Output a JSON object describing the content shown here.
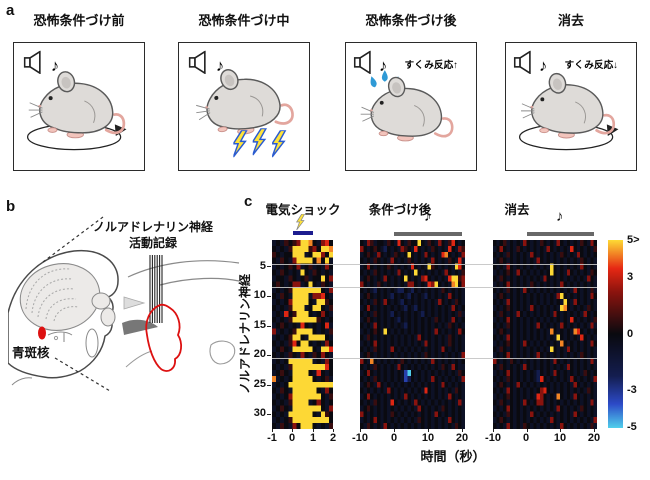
{
  "panel_a": {
    "label": "a",
    "note_symbol": "♪",
    "boxes": [
      {
        "title": "恐怖条件づけ前",
        "note": "♪",
        "annotation": "",
        "features": [
          "speaker",
          "movement-circle"
        ]
      },
      {
        "title": "恐怖条件づけ中",
        "note": "♪",
        "annotation": "",
        "features": [
          "speaker",
          "shock-bolts"
        ]
      },
      {
        "title": "恐怖条件づけ後",
        "note": "♪",
        "annotation": "すくみ反応↑",
        "features": [
          "speaker",
          "sweat-drops"
        ]
      },
      {
        "title": "消去",
        "note": "♪",
        "annotation": "すくみ反応↓",
        "features": [
          "speaker",
          "movement-circle"
        ]
      }
    ]
  },
  "panel_b": {
    "label": "b",
    "recording_label_line1": "ノルアドレナリン神経",
    "recording_label_line2": "活動記録",
    "lc_label": "青斑核",
    "lc_color": "#dd1111"
  },
  "panel_c": {
    "label": "c",
    "titles": [
      "電気ショック",
      "条件づけ後",
      "消去"
    ],
    "note_symbol": "♪",
    "xlabel": "時間（秒）",
    "ylabel": "ノルアドレナリン神経",
    "y_ticks": [
      5,
      10,
      15,
      20,
      25,
      30
    ],
    "colorbar": {
      "labels": [
        "5>",
        "3",
        "0",
        "-3",
        "-5"
      ],
      "max": 5,
      "min": -5
    }
  },
  "chart_data": [
    {
      "type": "heatmap",
      "title": "電気ショック",
      "xlabel": "時間（秒）",
      "ylabel": "ノルアドレナリン神経",
      "x_range": [
        -1,
        2
      ],
      "x_ticks": [
        -1,
        0,
        1,
        2
      ],
      "x_tick_labels": [
        "-1",
        "0",
        "1",
        "2"
      ],
      "stimulus": {
        "kind": "electric-shock",
        "from_s": 0,
        "to_s": 1,
        "color": "#1c1c8f",
        "icon": "lightning-icon"
      },
      "rows": 32,
      "cols": 15,
      "value_scale": "z-score",
      "value_min": -5,
      "value_max": 5,
      "row_separators_after_row": [
        4,
        8,
        20
      ],
      "value_key": {
        ".": 0,
        ",": -0.8,
        "-": 0.8,
        "r": 2.2,
        "R": 3.4,
        "o": 4.3,
        "Y": 5,
        "b": -2.2,
        "B": -3.4,
        "C": -5
      },
      "cells": [
        ",.,-.-rYYo.,rR.",
        ".,.,-YYYY-r.YYo",
        "-.,..YYY,.YYr.Y",
        ".,-.,rYYYY.o.Y,",
        ",.,.-.r,.-,.,r.",
        ".,-.,.,Y.,-.,.,",
        ",..,-.,.-,..Y.r",
        ".-.,.rr,.Y.,-.,",
        ",.,.-YYYYYYY.,r",
        ".,-.,YYYY,rrR.,",
        ",.,.rYYYY.,YY-.",
        ".,.,-YYY,.YY.,-",
        ",.,R.-YYY.,.r.,",
        ".,.,-YYYYYY-.,.",
        ",.-.,.,R.,.,.R,",
        "r,.,.-YYYY.,.,-",
        ",.,.-YY.,YYYY.,",
        ".,.,-R.YY.,.,r.",
        ",.-.,YYYYY.,YYR",
        ".,.,-.,r.,-.r.,",
        ",.,.YYYYYY,.,r.",
        ".,.,-YYYYYYYYR.",
        ",.-.,YYYY.,R.,.",
        "o,.,.YYYYY.,.-,",
        ",.,.YYYYYYYYYYY",
        ".,-.,YYYYYY.,r.",
        ",.,.rYYYYYYY.,-",
        ".,.,-YYYY,.r.,.",
        ",.-.,YYYYYYY.,r",
        ".,.,YYYYYY.,Y-.",
        ",.,.-YYYYYYYYY.",
        ".,-.,r.YYY.,.,-"
      ]
    },
    {
      "type": "heatmap",
      "title": "条件づけ後",
      "xlabel": "時間（秒）",
      "ylabel": "ノルアドレナリン神経",
      "x_range": [
        -10,
        21
      ],
      "x_ticks": [
        -10,
        0,
        10,
        20
      ],
      "x_tick_labels": [
        "-10",
        "0",
        "10",
        "20"
      ],
      "stimulus": {
        "kind": "tone",
        "from_s": 0,
        "to_s": 20,
        "color": "#686868",
        "icon": "music-note-icon"
      },
      "rows": 32,
      "cols": 31,
      "value_scale": "z-score",
      "value_min": -5,
      "value_max": 5,
      "row_separators_after_row": [
        4,
        8,
        20
      ],
      "value_key": {
        ".": 0,
        ",": -0.8,
        "-": 0.8,
        "r": 2.2,
        "R": 3.4,
        "o": 4.3,
        "Y": 5,
        "b": -2.2,
        "B": -3.4,
        "C": -5
      },
      "cells": [
        ".,r-,..,-.,R.,-..Y.,-.,r.,-R.,.",
        "r.,.-.,b.,.,r-.,R.,.,-.,.,R.,r-",
        ",.-.,r.,.,-.,.Y.,.,r.,.,Ro.,.,r",
        ".,.,-.,.,r.,.,-.,.,.,r.,.,-.,R,",
        ",.r.,.,.-.,.,.,R.,.,Y-.,.,.,YR.",
        ".,.,-.,.,.,r.,.,Y.,.,.,.,r.,.,-",
        ",.-.,.,r.,.,.Y.,.,rR.,.,.,RYY-r",
        "r.,.,-.,.,.,.,rr.,.,RrY.,.,oY.r",
        ".,.,b.,.,.,bb.,b.,.,.,.,-.,.,.,",
        ",.-.,.,.,b.,.,b.,.,b.,.,.,r.,.,",
        ".,.,-.,r.,.,b.,.,.,.,.,r.,.,-.,",
        ",.r.,.,.,.,.,b.,b.,.,.,.,.,r.,.",
        ".,.,-.,.,b.,.,.,.,b.,.,.,.,.,-,",
        ",.-.,.,.,.,b.,.,.,.,.,-.,.,r.,.",
        ".,.,r.,.,.,.,b.,.,.,.,.,.,-.,.,",
        ",.,.-.,Y.,.,.,.,.,.,.,r.,.,.,r.",
        ".,-.,.,.,.,.,.,.,r.,.,.,.,-.,.,",
        ",.,.r.,.,.,.,.,.,.,r.,.,.,-.,.,",
        ".,.,-.,.,r.,.,.,.,.,.,.,r.,.,.,",
        ",.-.,.,.,.,.,.,.,.,-.,.,.,.,.,r",
        "r.,o.,.,.,.,-.,.,.,.,r.,.,.,.,.",
        ".,.,-.,.,.,r.,.,.,.,.,.,-.,r.,,",
        ",.r.,.,.,.,.,BC.,.,.,.,.,.,.,-.",
        ".,.,-.,.,.,.,Bb.,.,.,r.,.,.,.,r",
        ",.-.,r.,.,.,.,.,.,.,.,.,r.,.,.,",
        ".,.,.,.,r.,.,.,.,.,R.,.,.,.,-.,",
        ",.r.,.,.,.,.,r.,.,.,.,.,.,r.,.,",
        ".,.,-.,.,R.,.,.,r.,.,.,.,.,.,r,",
        ",.-.,.,.,.,.,.,.,r.,.,.,-.,.,.,",
        "r.,.,.,.,-.,.,.,.,.,.,r.,.,.,.,",
        ",.,.r.,.,.,.,.,.,-.,.,.,.,r.,.,",
        ".,-.,.,r.,.,.,.,.,.,.,.,.,.,-.,"
      ]
    },
    {
      "type": "heatmap",
      "title": "消去",
      "xlabel": "時間（秒）",
      "ylabel": "ノルアドレナリン神経",
      "x_range": [
        -10,
        21
      ],
      "x_ticks": [
        -10,
        0,
        10,
        20
      ],
      "x_tick_labels": [
        "-10",
        "0",
        "10",
        "20"
      ],
      "stimulus": {
        "kind": "tone",
        "from_s": 0,
        "to_s": 20,
        "color": "#686868",
        "icon": "music-note-icon"
      },
      "rows": 32,
      "cols": 31,
      "value_scale": "z-score",
      "value_min": -5,
      "value_max": 5,
      "row_separators_after_row": [
        4,
        8,
        20
      ],
      "value_key": {
        ".": 0,
        ",": -0.8,
        "-": 0.8,
        "r": 2.2,
        "R": 3.4,
        "o": 4.3,
        "Y": 5,
        "b": -2.2,
        "B": -3.4,
        "C": -5
      },
      "cells": [
        ".,.-,.,.,r.,.,-.,.,r.,.,.,-.,r.",
        ",.r.,.,-.,.,.,.,r.,.,.,R.,.,.,-",
        ".,.,-.,.,.,r.,.,.,.,-.,.,r.,.,.",
        ",.-.,.,.,.,.,r.,.,.,.,.,.,-.,.,",
        ".,.,r.,.,.,.,.,.,Y.,.,.,.,r.,.,",
        ",.,.-.,r.,.,.,.,.Y.,.,r.,.,.,-.",
        ".,-.,.,.,.,.,.,r.,.,.,.,.,.,r.,",
        ",.,.r.,.,.,-.,.,.,.,r.,.,.,.,.,",
        ".,.,-.,.,r.,.,.,.,.,.,.,r.,.,-,",
        ",.-.,.,.,.,.,.,.,.,rY.,.,.,.,r.",
        ".,.,r.,.,.,.,.,.,.,.,Y.,r.,.,.,",
        ",.,.-.,.,.,r.,.,.,.,Yo.,.,.,-.,",
        ".,-.,.,r.,.,.,.,.,r.,.,.,.,r.,.",
        ",.,.r.,.,.,.,.,.,.,.,.,R.,.,.,-",
        ".,.,-.,.,.,.,r.,.,.,r.,.,.,.,r,",
        ",.-.,.,.,.,.,.,.,o.,.,.,oR.,.,.",
        ".,.,r.,.,.,.,.,.,.,Y.,.,.,R.,.,",
        ",.,.-.,.,r.,.,.,.,.,o.,.,.,.,r.",
        ".,-.,.,.,.,.,.,.,Y.,.,r.,.,.,.,",
        ",.,.r.,.,.,.,r.,.,.,.,.,.,-.,.,",
        "r.,.,-.,.,.,.,.,.,r.,.,.,.,.,r,",
        ".,-.,.,.,r.,.,.,.,.,.,r.,.,.,.,",
        ",.,.r.,.,.,.,b.,.,r.,.,.,.,-.,.",
        ".,.,-.,.,.,.,bR.,.,.,.,r.,.,.,r",
        ",.-.,.,r.,.,.,.,.,.,.,.,r.,.,.,",
        ".,.,r.,.,.,.,.rR.,.,.,.,.,.,-.,",
        ",.,.-.,.,.,.,Rr.,.,o.,.,r.,.,.,",
        ".,-.,.,.,r.,.rr.,.,.,.,.,.,.,r,",
        ",.,.r.,.,.,.,.,.,.,r.,.,.,-.,.,",
        ".,.,-.,.,.,r.,.,.,.,.,.,r.,.,.,",
        ",.-.,.,.,.,.,.,.,r.,.,.,.,.,.,r",
        ".,.,r.,.,-.,.,.,.,.,r.,.,.,.,-,"
      ]
    }
  ]
}
